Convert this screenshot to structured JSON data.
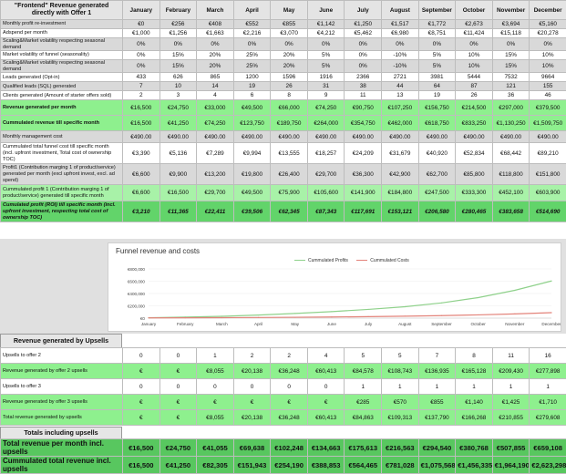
{
  "header": {
    "title": "\"Frontend\" Revenue generated directly with Offer 1",
    "months": [
      "January",
      "February",
      "March",
      "April",
      "May",
      "June",
      "July",
      "August",
      "September",
      "October",
      "November",
      "December"
    ]
  },
  "table1": {
    "rows": [
      {
        "label": "Monthly profit re-investment",
        "values": [
          "€0",
          "€256",
          "€408",
          "€552",
          "€855",
          "€1,142",
          "€1,250",
          "€1,517",
          "€1,772",
          "€2,673",
          "€3,694",
          "€5,160"
        ]
      },
      {
        "label": "Adspend per month",
        "values": [
          "€1,000",
          "€1,256",
          "€1,663",
          "€2,216",
          "€3,070",
          "€4,212",
          "€5,462",
          "€6,980",
          "€8,751",
          "€11,424",
          "€15,118",
          "€20,278"
        ]
      },
      {
        "label": "Scaling&Market volatility respecting seasonal demand",
        "values": [
          "0%",
          "0%",
          "0%",
          "0%",
          "0%",
          "0%",
          "0%",
          "0%",
          "0%",
          "0%",
          "0%",
          "0%"
        ]
      },
      {
        "label": "Market volatility of funnel (seasonality)",
        "values": [
          "0%",
          "15%",
          "20%",
          "25%",
          "20%",
          "5%",
          "0%",
          "-10%",
          "5%",
          "10%",
          "15%",
          "10%"
        ]
      },
      {
        "label": "Scaling&Market volatility respecting seasonal demand",
        "values": [
          "0%",
          "15%",
          "20%",
          "25%",
          "20%",
          "5%",
          "0%",
          "-10%",
          "5%",
          "10%",
          "15%",
          "10%"
        ]
      },
      {
        "label": "Leads generated (Opt-in)",
        "values": [
          "433",
          "626",
          "865",
          "1200",
          "1596",
          "1916",
          "2366",
          "2721",
          "3981",
          "5444",
          "7532",
          "9664"
        ]
      },
      {
        "label": "Qualified leads (SQL) generated",
        "values": [
          "7",
          "10",
          "14",
          "19",
          "26",
          "31",
          "38",
          "44",
          "64",
          "87",
          "121",
          "155"
        ]
      },
      {
        "label": "Clients generated (Amount of starter offers sold)",
        "values": [
          "2",
          "3",
          "4",
          "6",
          "8",
          "9",
          "11",
          "13",
          "19",
          "26",
          "36",
          "46"
        ]
      },
      {
        "label": "Revenue generated per month",
        "values": [
          "€16,500",
          "€24,750",
          "€33,000",
          "€49,500",
          "€66,000",
          "€74,250",
          "€90,750",
          "€107,250",
          "€156,750",
          "€214,500",
          "€297,000",
          "€379,500"
        ]
      },
      {
        "label": "Cummulated revenue till specific month",
        "values": [
          "€16,500",
          "€41,250",
          "€74,250",
          "€123,750",
          "€189,750",
          "€264,000",
          "€354,750",
          "€462,000",
          "€618,750",
          "€833,250",
          "€1,130,250",
          "€1,509,750"
        ]
      },
      {
        "label": "Monthly management cost",
        "values": [
          "€490.00",
          "€490.00",
          "€490.00",
          "€490.00",
          "€490.00",
          "€490.00",
          "€490.00",
          "€490.00",
          "€490.00",
          "€490.00",
          "€490.00",
          "€490.00"
        ]
      },
      {
        "label": "Cummulated total funnel cost till specific month (incl. upfront investment, Total cost of ownership TOC)",
        "values": [
          "€3,390",
          "€5,136",
          "€7,289",
          "€9,994",
          "€13,555",
          "€18,257",
          "€24,209",
          "€31,679",
          "€40,920",
          "€52,834",
          "€68,442",
          "€89,210"
        ]
      },
      {
        "label": "Profit1 (Contribution marging 1 of product/service) generated per month (excl upfront invest, excl. ad spend)",
        "values": [
          "€6,600",
          "€9,900",
          "€13,200",
          "€19,800",
          "€26,400",
          "€29,700",
          "€36,300",
          "€42,900",
          "€62,700",
          "€85,800",
          "€118,800",
          "€151,800"
        ]
      },
      {
        "label": "Cummulated profit 1 (Contribution marging 1 of product/service) generated till specific month",
        "values": [
          "€6,600",
          "€16,500",
          "€29,700",
          "€49,500",
          "€75,900",
          "€105,600",
          "€141,900",
          "€184,800",
          "€247,500",
          "€333,300",
          "€452,100",
          "€603,900"
        ]
      },
      {
        "label": "Cumulated profit (ROI) till specific month (incl. upfront investment, respecting total cost of ownership TOC)",
        "values": [
          "€3,210",
          "€11,365",
          "€22,411",
          "€39,506",
          "€62,345",
          "€87,343",
          "€117,691",
          "€153,121",
          "€206,580",
          "€280,465",
          "€383,658",
          "€514,690"
        ]
      }
    ]
  },
  "chart_data": {
    "type": "line",
    "title": "Funnel revenue and costs",
    "categories": [
      "January",
      "February",
      "March",
      "April",
      "May",
      "June",
      "July",
      "August",
      "September",
      "October",
      "November",
      "December"
    ],
    "yticks": [
      "€0",
      "€200,000",
      "€400,000",
      "€600,000",
      "€800,000"
    ],
    "ylim": [
      0,
      800000
    ],
    "series": [
      {
        "name": "Cummulated Profits",
        "color": "#8fd18b",
        "values": [
          6600,
          16500,
          29700,
          49500,
          75900,
          105600,
          141900,
          184800,
          247500,
          333300,
          452100,
          603900
        ]
      },
      {
        "name": "Cummulated Costs",
        "color": "#e3837a",
        "values": [
          3390,
          5136,
          7289,
          9994,
          13555,
          18257,
          24209,
          31679,
          40920,
          52834,
          68442,
          89210
        ]
      }
    ],
    "legend_position": "top"
  },
  "section2": {
    "title": "Revenue generated by Upsells",
    "rows": [
      {
        "label": "Upsells to offer 2",
        "values": [
          "0",
          "0",
          "1",
          "2",
          "2",
          "4",
          "5",
          "5",
          "7",
          "8",
          "11",
          "16"
        ]
      },
      {
        "label": "Revenue generated by offer 2 upsells",
        "values": [
          "€",
          "€",
          "€8,055",
          "€20,138",
          "€36,248",
          "€60,413",
          "€84,578",
          "€108,743",
          "€136,935",
          "€165,128",
          "€209,430",
          "€277,898"
        ]
      },
      {
        "label": "Upsells to offer 3",
        "values": [
          "0",
          "0",
          "0",
          "0",
          "0",
          "0",
          "1",
          "1",
          "1",
          "1",
          "1",
          "1"
        ]
      },
      {
        "label": "Revenue generated by offer 3 upsells",
        "values": [
          "€",
          "€",
          "€",
          "€",
          "€",
          "€",
          "€285",
          "€570",
          "€855",
          "€1,140",
          "€1,425",
          "€1,710"
        ]
      },
      {
        "label": "Total revenue generated by upsells",
        "values": [
          "€",
          "€",
          "€8,055",
          "€20,138",
          "€36,248",
          "€60,413",
          "€84,863",
          "€109,313",
          "€137,790",
          "€166,268",
          "€210,855",
          "€279,608"
        ]
      }
    ]
  },
  "section3": {
    "title": "Totals including upsells",
    "rows": [
      {
        "label": "Total revenue per month incl. upsells",
        "values": [
          "€16,500",
          "€24,750",
          "€41,055",
          "€69,638",
          "€102,248",
          "€134,663",
          "€175,613",
          "€216,563",
          "€294,540",
          "€380,768",
          "€507,855",
          "€659,108"
        ]
      },
      {
        "label": "Cummulated total revenue incl. upsells",
        "values": [
          "€16,500",
          "€41,250",
          "€82,305",
          "€151,943",
          "€254,190",
          "€388,853",
          "€564,465",
          "€781,028",
          "€1,075,568",
          "€1,456,335",
          "€1,964,190",
          "€2,623,298"
        ]
      }
    ]
  }
}
